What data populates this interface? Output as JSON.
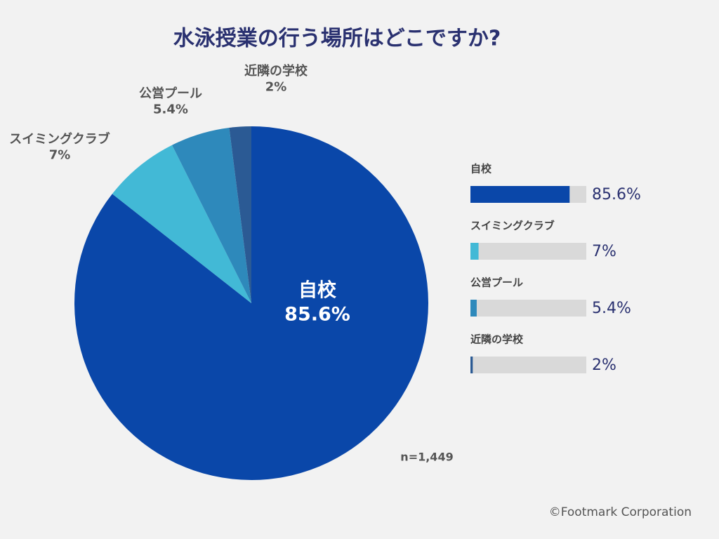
{
  "chart_data": {
    "type": "pie",
    "title": "水泳授業の行う場所はどこですか?",
    "categories": [
      "自校",
      "スイミングクラブ",
      "公営プール",
      "近隣の学校"
    ],
    "values": [
      85.6,
      7,
      5.4,
      2
    ],
    "value_labels": [
      "85.6%",
      "7%",
      "5.4%",
      "2%"
    ],
    "colors": [
      "#0a47a9",
      "#42b9d6",
      "#2e89bb",
      "#2b5a94"
    ],
    "xlim": [
      0,
      100
    ],
    "note": "n=1,449",
    "credit": "©Footmark Corporation"
  }
}
